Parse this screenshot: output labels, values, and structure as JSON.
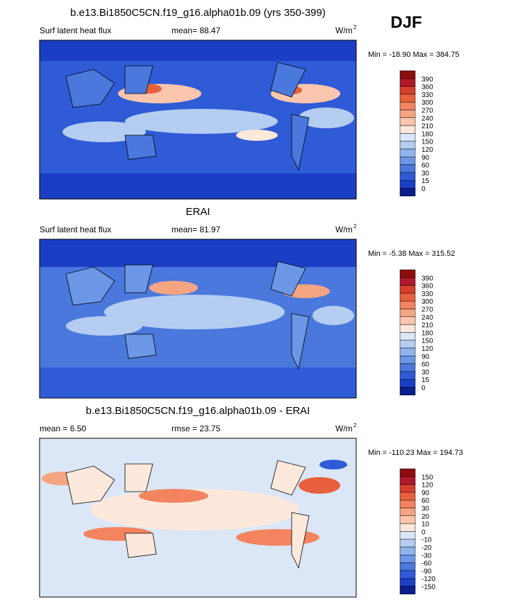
{
  "season": "DJF",
  "panels": [
    {
      "title": "b.e13.Bi1850C5CN.f19_g16.alpha01b.09 (yrs 350-399)",
      "left": "Surf latent heat flux",
      "center": "mean=  88.47",
      "units": "W/m",
      "units_sup": "2",
      "minmax": "Min = -18.90 Max = 384.75",
      "colorbar": {
        "labels": [
          390,
          360,
          330,
          300,
          270,
          240,
          210,
          180,
          150,
          120,
          90,
          60,
          30,
          15,
          0
        ],
        "colors": [
          "#8c0d0d",
          "#b2182b",
          "#d6402b",
          "#e8603c",
          "#f4845f",
          "#f6a582",
          "#fbc6ad",
          "#fde9dc",
          "#dbe7f7",
          "#b4cdf0",
          "#8fb3ec",
          "#6c97e6",
          "#4a78dd",
          "#2f5bd6",
          "#1b3fc4",
          "#0a1e8c"
        ]
      }
    },
    {
      "title": "ERAI",
      "left": "Surf latent heat flux",
      "center": "mean=  81.97",
      "units": "W/m",
      "units_sup": "2",
      "minmax": "Min =  -5.38 Max = 315.52",
      "colorbar": {
        "labels": [
          390,
          360,
          330,
          300,
          270,
          240,
          210,
          180,
          150,
          120,
          90,
          60,
          30,
          15,
          0
        ],
        "colors": [
          "#8c0d0d",
          "#b2182b",
          "#d6402b",
          "#e8603c",
          "#f4845f",
          "#f6a582",
          "#fbc6ad",
          "#fde9dc",
          "#dbe7f7",
          "#b4cdf0",
          "#8fb3ec",
          "#6c97e6",
          "#4a78dd",
          "#2f5bd6",
          "#1b3fc4",
          "#0a1e8c"
        ]
      }
    },
    {
      "title": "b.e13.Bi1850C5CN.f19_g16.alpha01b.09 - ERAI",
      "left": "mean =  6.50",
      "center": "rmse =  23.75",
      "units": "W/m",
      "units_sup": "2",
      "minmax": "Min = -110.23 Max = 194.73",
      "colorbar": {
        "labels": [
          150,
          120,
          90,
          60,
          30,
          20,
          10,
          0,
          -10,
          -20,
          -30,
          -60,
          -90,
          -120,
          -150
        ],
        "colors": [
          "#8c0d0d",
          "#b2182b",
          "#d6402b",
          "#e8603c",
          "#f4845f",
          "#f6a582",
          "#fbc6ad",
          "#fde9dc",
          "#dbe7f7",
          "#b4cdf0",
          "#8fb3ec",
          "#6c97e6",
          "#4a78dd",
          "#2f5bd6",
          "#1b3fc4",
          "#0a1e8c"
        ]
      }
    }
  ]
}
